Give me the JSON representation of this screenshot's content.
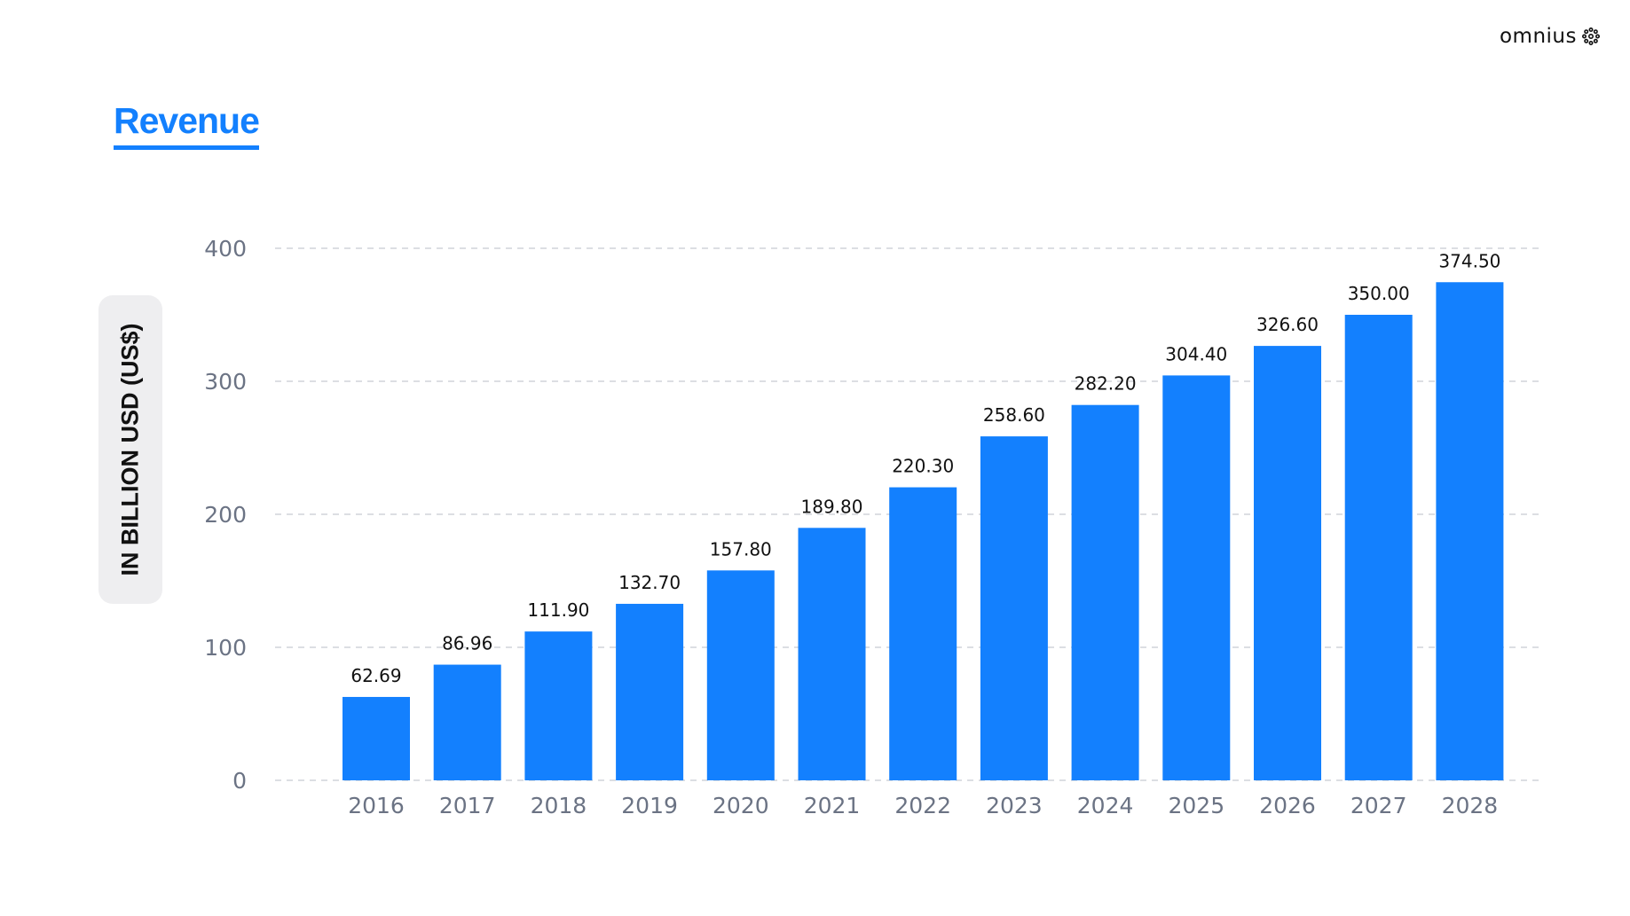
{
  "brand": {
    "name": "omnius",
    "logo_icon": "asterisk-flower-icon"
  },
  "chart_data": {
    "type": "bar",
    "title": "Revenue",
    "ylabel": "IN BILLION USD (US$)",
    "xlabel": "",
    "categories": [
      "2016",
      "2017",
      "2018",
      "2019",
      "2020",
      "2021",
      "2022",
      "2023",
      "2024",
      "2025",
      "2026",
      "2027",
      "2028"
    ],
    "values": [
      62.69,
      86.96,
      111.9,
      132.7,
      157.8,
      189.8,
      220.3,
      258.6,
      282.2,
      304.4,
      326.6,
      350.0,
      374.5
    ],
    "value_labels": [
      "62.69",
      "86.96",
      "111.90",
      "132.70",
      "157.80",
      "189.80",
      "220.30",
      "258.60",
      "282.20",
      "304.40",
      "326.60",
      "350.00",
      "374.50"
    ],
    "y_ticks": [
      0,
      100,
      200,
      300,
      400
    ],
    "ylim": [
      0,
      400
    ],
    "grid": true,
    "grid_style": "dashed",
    "legend": "none",
    "bar_color": "#1380fe",
    "title_color": "#1380fe"
  }
}
